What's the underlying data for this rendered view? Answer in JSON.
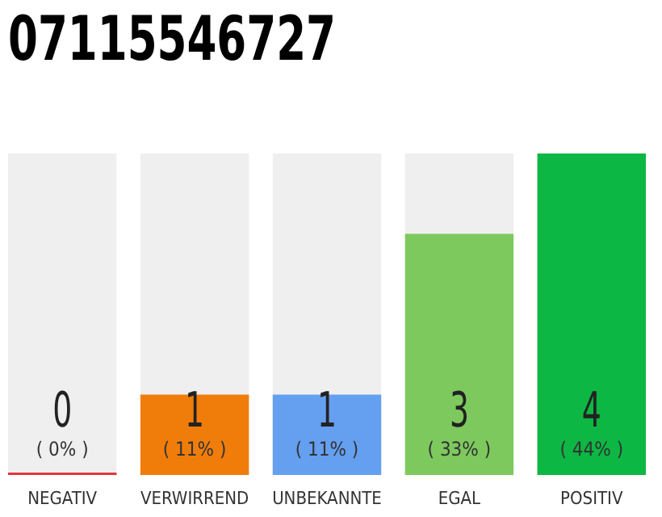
{
  "chart_data": {
    "type": "bar",
    "title": "07115546727",
    "categories": [
      "NEGATIV",
      "VERWIRREND",
      "UNBEKANNTE",
      "EGAL",
      "POSITIV"
    ],
    "values": [
      0,
      1,
      1,
      3,
      4
    ],
    "colors": [
      "#e8303d",
      "#f07d0a",
      "#659ff0",
      "#7dc95e",
      "#0db744"
    ],
    "value_labels": [
      "0\n( 0% )",
      "1\n( 11% )",
      "1\n( 11% )",
      "3\n( 33% )",
      "4\n( 44% )"
    ],
    "ylim": [
      0,
      4
    ],
    "tick_labels": "x"
  }
}
